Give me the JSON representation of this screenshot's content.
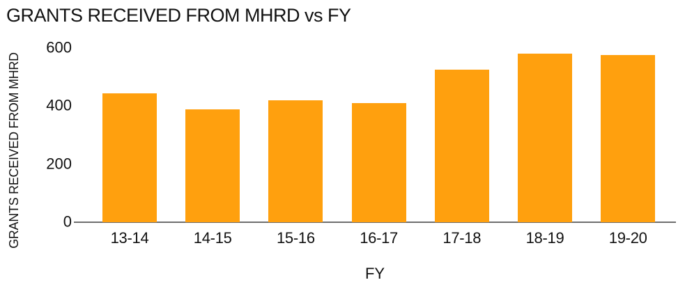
{
  "chart_data": {
    "type": "bar",
    "title": "GRANTS RECEIVED FROM MHRD vs FY",
    "xlabel": "FY",
    "ylabel": "GRANTS RECEIVED FROM MHRD",
    "categories": [
      "13-14",
      "14-15",
      "15-16",
      "16-17",
      "17-18",
      "18-19",
      "19-20"
    ],
    "values": [
      445,
      390,
      420,
      410,
      525,
      580,
      575
    ],
    "yticks": [
      0,
      200,
      400,
      600
    ],
    "ylim": [
      0,
      600
    ],
    "grid": false,
    "legend": false,
    "layout_hints": {
      "bar_color": "#FFA00E",
      "axis_color": "#6E6E6E",
      "text_color": "#111111",
      "background": "#FFFFFF"
    }
  }
}
